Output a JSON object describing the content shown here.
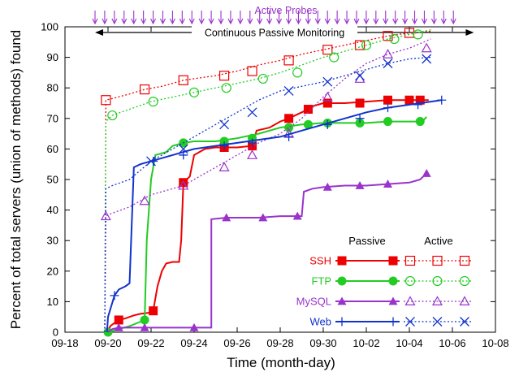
{
  "chart_data": {
    "type": "line",
    "xlabel": "Time (month-day)",
    "ylabel": "Percent of total servers (union of methods) found",
    "x_ticks": [
      "09-18",
      "09-20",
      "09-22",
      "09-24",
      "09-26",
      "09-28",
      "09-30",
      "10-02",
      "10-04",
      "10-06",
      "10-08"
    ],
    "y_ticks": [
      "0",
      "10",
      "20",
      "30",
      "40",
      "50",
      "60",
      "70",
      "80",
      "90",
      "100"
    ],
    "xlim": [
      0,
      20
    ],
    "ylim": [
      0,
      100
    ],
    "x_unit": "days since 09-18",
    "grid": false,
    "legend": {
      "position": "bottom-right",
      "passive_header": "Passive",
      "active_header": "Active"
    },
    "annotations": {
      "active_probes": "Active Probes",
      "passive_monitoring": "Continuous Passive Monitoring"
    },
    "series": [
      {
        "name": "SSH",
        "method": "Passive",
        "color": "#ee0000",
        "marker": "square-filled",
        "dash": "solid",
        "points": [
          [
            2.0,
            0
          ],
          [
            2.1,
            2
          ],
          [
            2.3,
            3
          ],
          [
            2.5,
            4
          ],
          [
            2.8,
            4.5
          ],
          [
            3.0,
            5
          ],
          [
            3.2,
            5.5
          ],
          [
            3.5,
            6
          ],
          [
            3.7,
            6.2
          ],
          [
            4.0,
            6.5
          ],
          [
            4.1,
            7
          ],
          [
            4.3,
            15
          ],
          [
            4.5,
            20
          ],
          [
            4.7,
            22.5
          ],
          [
            5.0,
            23
          ],
          [
            5.3,
            23
          ],
          [
            5.4,
            30
          ],
          [
            5.5,
            49
          ],
          [
            5.8,
            51
          ],
          [
            6.0,
            58
          ],
          [
            6.5,
            60
          ],
          [
            7.0,
            60.5
          ],
          [
            8.0,
            60.5
          ],
          [
            8.7,
            61
          ],
          [
            8.9,
            66
          ],
          [
            9.5,
            67
          ],
          [
            10.0,
            69
          ],
          [
            10.4,
            70
          ],
          [
            11.0,
            72
          ],
          [
            11.3,
            73
          ],
          [
            11.5,
            74
          ],
          [
            12.0,
            75
          ],
          [
            13.0,
            75
          ],
          [
            14.0,
            75.5
          ],
          [
            15.0,
            76
          ],
          [
            16.5,
            76
          ],
          [
            16.9,
            76
          ]
        ],
        "marker_x": [
          2.5,
          4.1,
          5.5,
          7.4,
          8.7,
          10.4,
          11.3,
          12.2,
          13.7,
          15.0,
          16.0,
          16.5
        ]
      },
      {
        "name": "SSH",
        "method": "Active",
        "color": "#ee0000",
        "marker": "square-open",
        "dash": "dotted",
        "points": [
          [
            1.85,
            0
          ],
          [
            1.9,
            76
          ],
          [
            2.2,
            76.5
          ],
          [
            3.0,
            78
          ],
          [
            3.7,
            79.5
          ],
          [
            4.5,
            80.5
          ],
          [
            5.0,
            81.5
          ],
          [
            5.5,
            82.5
          ],
          [
            6.0,
            83
          ],
          [
            7.0,
            84
          ],
          [
            8.0,
            85.5
          ],
          [
            9.0,
            87.5
          ],
          [
            10.0,
            89
          ],
          [
            11.0,
            91
          ],
          [
            12.0,
            92.5
          ],
          [
            13.0,
            94
          ],
          [
            14.0,
            95.5
          ],
          [
            15.0,
            97
          ],
          [
            16.0,
            98
          ],
          [
            17.0,
            98.5
          ]
        ],
        "marker_x": [
          1.9,
          3.7,
          5.5,
          7.4,
          8.7,
          10.4,
          12.2,
          13.7,
          15.0,
          16.0
        ]
      },
      {
        "name": "FTP",
        "method": "Passive",
        "color": "#22cc22",
        "marker": "circle-filled",
        "dash": "solid",
        "points": [
          [
            2.0,
            0
          ],
          [
            2.5,
            1
          ],
          [
            3.0,
            2
          ],
          [
            3.7,
            4
          ],
          [
            3.8,
            30
          ],
          [
            4.0,
            50
          ],
          [
            4.2,
            58
          ],
          [
            4.7,
            59
          ],
          [
            5.0,
            61
          ],
          [
            5.5,
            62
          ],
          [
            6.0,
            62.5
          ],
          [
            7.0,
            62.5
          ],
          [
            8.0,
            63.5
          ],
          [
            9.0,
            65
          ],
          [
            10.0,
            67
          ],
          [
            11.0,
            68
          ],
          [
            12.0,
            68.5
          ],
          [
            13.0,
            68.5
          ],
          [
            14.0,
            68.5
          ],
          [
            15.0,
            69
          ],
          [
            16.0,
            69
          ],
          [
            16.6,
            69
          ],
          [
            16.8,
            70.5
          ]
        ],
        "marker_x": [
          2.0,
          3.7,
          5.5,
          7.4,
          8.7,
          10.4,
          11.3,
          12.2,
          13.7,
          15.0,
          16.5
        ]
      },
      {
        "name": "FTP",
        "method": "Active",
        "color": "#22cc22",
        "marker": "circle-open",
        "dash": "dotted",
        "points": [
          [
            1.85,
            0
          ],
          [
            1.9,
            69
          ],
          [
            2.2,
            71
          ],
          [
            3.0,
            73
          ],
          [
            4.0,
            75.5
          ],
          [
            5.0,
            77
          ],
          [
            6.0,
            78.5
          ],
          [
            7.0,
            80
          ],
          [
            8.0,
            81.5
          ],
          [
            9.0,
            83
          ],
          [
            10.0,
            85
          ],
          [
            11.0,
            87.5
          ],
          [
            12.0,
            90
          ],
          [
            13.0,
            92
          ],
          [
            14.0,
            94
          ],
          [
            15.0,
            96
          ],
          [
            16.0,
            97.5
          ],
          [
            17.0,
            99
          ]
        ],
        "marker_x": [
          2.2,
          4.1,
          6.0,
          7.5,
          9.2,
          10.8,
          12.5,
          14.0,
          15.3,
          16.4
        ]
      },
      {
        "name": "MySQL",
        "method": "Passive",
        "color": "#9933cc",
        "marker": "triangle-filled",
        "dash": "solid",
        "points": [
          [
            2.0,
            0
          ],
          [
            2.2,
            1
          ],
          [
            2.5,
            1.5
          ],
          [
            3.0,
            1.5
          ],
          [
            4.0,
            1.5
          ],
          [
            5.0,
            1.5
          ],
          [
            6.0,
            1.5
          ],
          [
            6.2,
            1.5
          ],
          [
            6.8,
            1.5
          ],
          [
            6.8,
            37
          ],
          [
            7.5,
            37.5
          ],
          [
            9.0,
            37.5
          ],
          [
            10.0,
            38
          ],
          [
            11.0,
            38
          ],
          [
            11.1,
            46
          ],
          [
            11.5,
            47
          ],
          [
            12.0,
            47.5
          ],
          [
            13.0,
            48
          ],
          [
            14.0,
            48
          ],
          [
            15.0,
            48.5
          ],
          [
            16.0,
            49
          ],
          [
            16.5,
            50
          ],
          [
            16.8,
            52
          ]
        ],
        "marker_x": [
          2.5,
          3.7,
          6.0,
          7.5,
          9.2,
          10.8,
          12.2,
          13.7,
          15.0,
          16.8
        ]
      },
      {
        "name": "MySQL",
        "method": "Active",
        "color": "#9933cc",
        "marker": "triangle-open",
        "dash": "dotted",
        "points": [
          [
            1.85,
            0
          ],
          [
            1.9,
            38
          ],
          [
            2.2,
            39
          ],
          [
            3.0,
            41
          ],
          [
            3.5,
            43
          ],
          [
            4.0,
            45
          ],
          [
            5.0,
            47
          ],
          [
            5.5,
            48
          ],
          [
            6.0,
            50
          ],
          [
            7.0,
            54
          ],
          [
            8.0,
            58
          ],
          [
            9.0,
            62
          ],
          [
            10.0,
            65
          ],
          [
            11.0,
            70
          ],
          [
            12.0,
            77
          ],
          [
            13.0,
            83
          ],
          [
            14.0,
            88
          ],
          [
            15.0,
            91
          ],
          [
            16.0,
            93
          ],
          [
            17.0,
            96
          ]
        ],
        "marker_x": [
          1.9,
          3.7,
          5.5,
          7.4,
          8.7,
          10.4,
          12.2,
          13.7,
          15.0,
          16.8
        ]
      },
      {
        "name": "Web",
        "method": "Passive",
        "color": "#1133cc",
        "marker": "plus",
        "dash": "solid",
        "points": [
          [
            1.95,
            0
          ],
          [
            2.0,
            5
          ],
          [
            2.3,
            12
          ],
          [
            2.5,
            14
          ],
          [
            2.8,
            15
          ],
          [
            3.0,
            16
          ],
          [
            3.2,
            54
          ],
          [
            3.5,
            55
          ],
          [
            4.0,
            56
          ],
          [
            4.5,
            57
          ],
          [
            5.0,
            58
          ],
          [
            6.0,
            60
          ],
          [
            7.0,
            61
          ],
          [
            8.0,
            62
          ],
          [
            9.0,
            63
          ],
          [
            10.0,
            64
          ],
          [
            11.0,
            66
          ],
          [
            12.0,
            68
          ],
          [
            13.0,
            70
          ],
          [
            14.0,
            72
          ],
          [
            15.0,
            73.5
          ],
          [
            16.0,
            74.5
          ],
          [
            17.0,
            75.5
          ],
          [
            17.5,
            76
          ]
        ],
        "marker_x": [
          2.3,
          4.1,
          5.5,
          7.4,
          8.7,
          10.4,
          12.2,
          13.7,
          15.0,
          16.4,
          17.5
        ]
      },
      {
        "name": "Web",
        "method": "Active",
        "color": "#1133cc",
        "marker": "x",
        "dash": "dotted",
        "points": [
          [
            1.85,
            0
          ],
          [
            1.9,
            47
          ],
          [
            2.2,
            48
          ],
          [
            3.0,
            50
          ],
          [
            4.0,
            56
          ],
          [
            5.0,
            60
          ],
          [
            6.0,
            64
          ],
          [
            7.0,
            68
          ],
          [
            8.0,
            72
          ],
          [
            9.0,
            76
          ],
          [
            10.0,
            79
          ],
          [
            11.0,
            80.5
          ],
          [
            12.0,
            82
          ],
          [
            13.0,
            84
          ],
          [
            14.0,
            86
          ],
          [
            15.0,
            88
          ],
          [
            16.0,
            89.5
          ],
          [
            17.0,
            90
          ]
        ],
        "marker_x": [
          4.0,
          5.5,
          7.4,
          8.7,
          10.4,
          12.2,
          13.7,
          15.0,
          16.8
        ]
      }
    ],
    "active_probe_arrows_x": [
      0,
      0.45,
      0.9,
      1.35,
      1.8,
      2.25,
      2.7,
      3.15,
      3.6,
      4.05,
      4.5,
      4.95,
      5.4,
      5.85,
      6.3,
      6.75,
      7.2,
      7.65,
      8.1,
      8.55,
      9.0,
      9.45,
      9.9,
      10.35,
      10.8,
      11.25,
      11.7,
      12.15,
      12.6,
      13.05,
      13.5,
      13.95,
      14.4,
      14.85,
      15.3,
      15.75,
      16.2,
      16.65
    ],
    "passive_range": [
      0,
      17.6
    ]
  }
}
